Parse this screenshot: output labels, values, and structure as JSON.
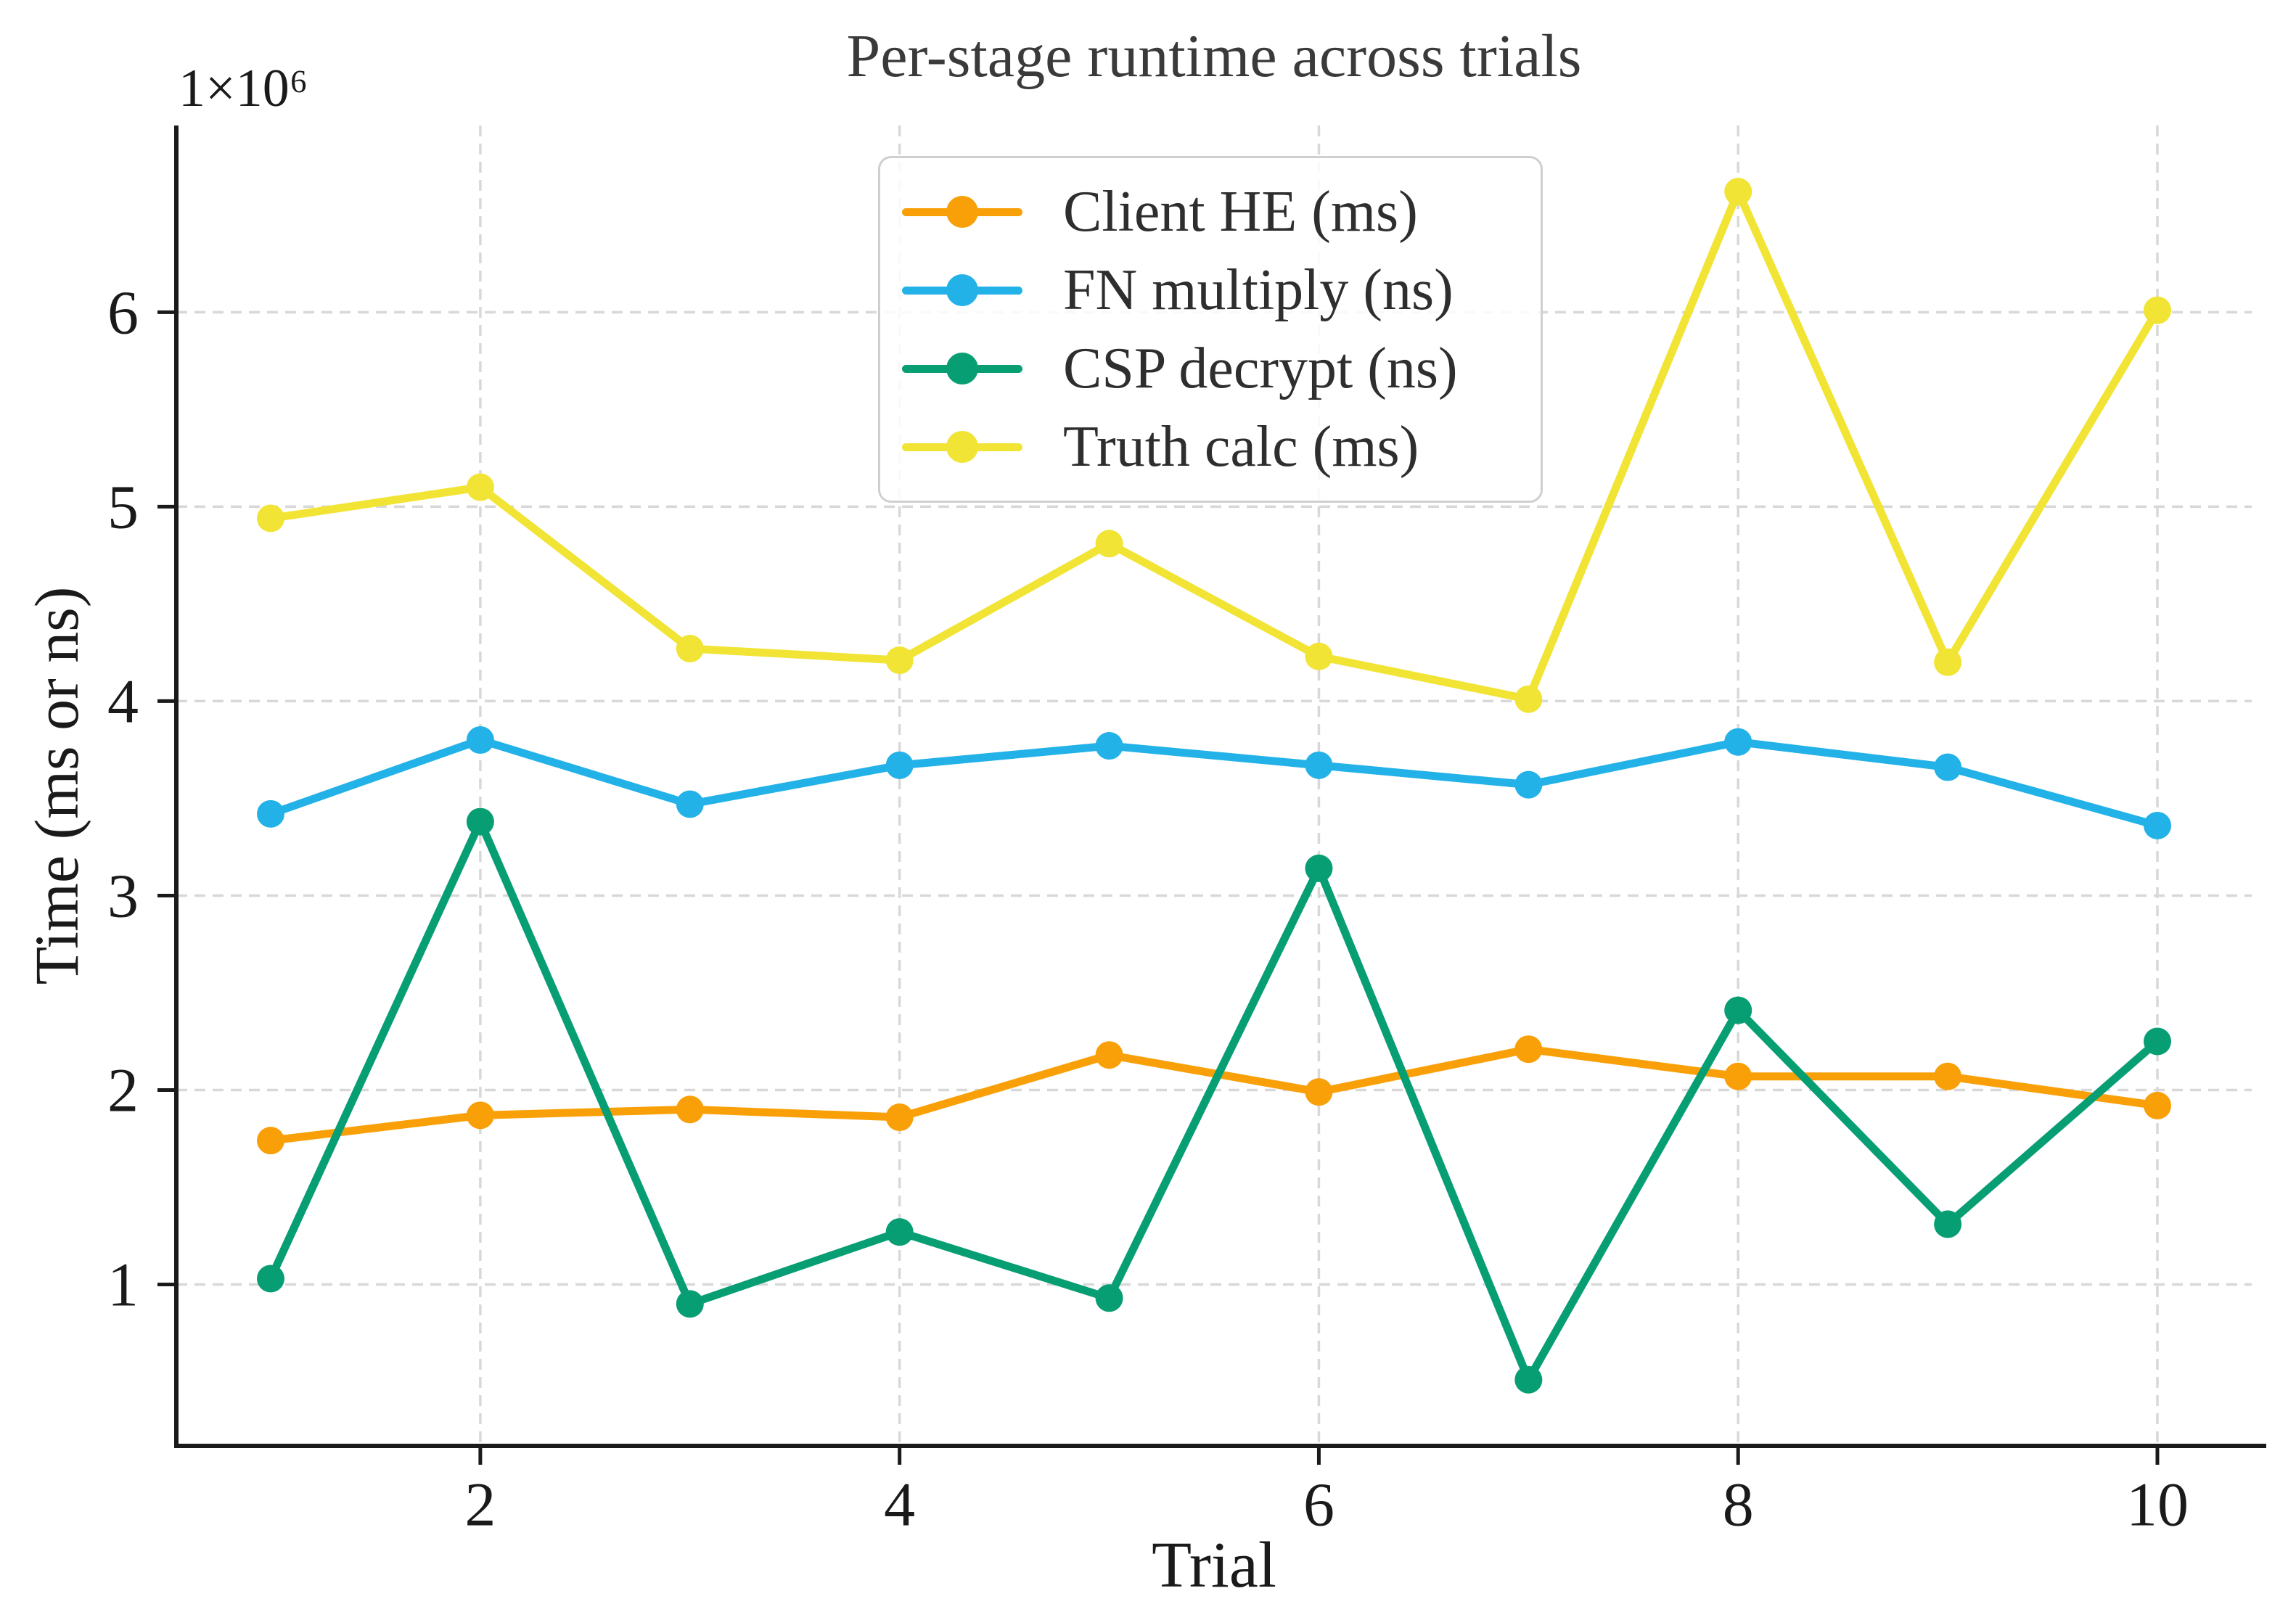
{
  "title": "Per-stage runtime across trials",
  "y_offset_label": "1×10⁶",
  "chart_data": {
    "type": "line",
    "title": "Per-stage runtime across trials",
    "xlabel": "Trial",
    "ylabel": "Time (ms or ns)",
    "y_multiplier_label": "1×10⁶",
    "values_scale": 1000000,
    "x": [
      1,
      2,
      3,
      4,
      5,
      6,
      7,
      8,
      9,
      10
    ],
    "series": [
      {
        "name": "Client HE (ms)",
        "color": "#F9A008",
        "values": [
          1.74,
          1.87,
          1.9,
          1.86,
          2.18,
          1.99,
          2.21,
          2.07,
          2.07,
          1.92
        ]
      },
      {
        "name": "FN multiply (ns)",
        "color": "#23B2E8",
        "values": [
          3.42,
          3.8,
          3.47,
          3.67,
          3.77,
          3.67,
          3.57,
          3.79,
          3.66,
          3.36
        ]
      },
      {
        "name": "CSP decrypt (ns)",
        "color": "#089E73",
        "values": [
          1.03,
          3.38,
          0.9,
          1.27,
          0.93,
          3.14,
          0.51,
          2.41,
          1.31,
          2.25
        ]
      },
      {
        "name": "Truth calc (ms)",
        "color": "#F1E435",
        "values": [
          4.94,
          5.1,
          4.27,
          4.21,
          4.81,
          4.23,
          4.01,
          6.62,
          4.2,
          6.01
        ]
      }
    ],
    "xticks": [
      2,
      4,
      6,
      8,
      10
    ],
    "yticks": [
      1,
      2,
      3,
      4,
      5,
      6
    ],
    "xlim": [
      0.55,
      10.45
    ],
    "ylim": [
      0.17,
      6.96
    ],
    "grid": true,
    "grid_style": "dashed",
    "legend_position": "upper center",
    "axis_color": "#1a1a1a",
    "grid_color": "#d8d8d8"
  }
}
